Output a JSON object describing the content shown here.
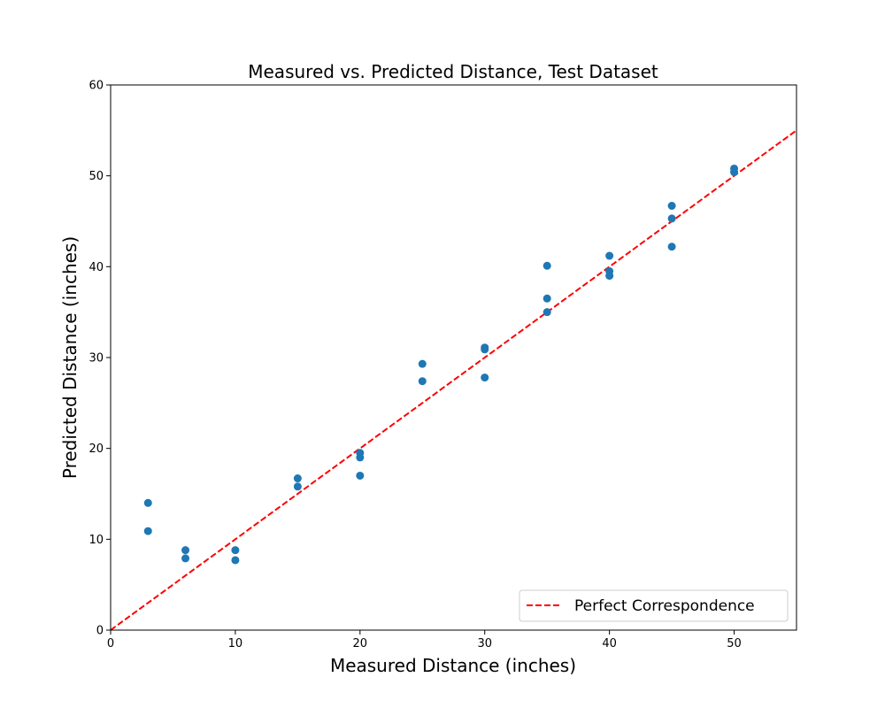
{
  "chart_data": {
    "type": "scatter",
    "title": "Measured vs. Predicted Distance, Test Dataset",
    "xlabel": "Measured Distance (inches)",
    "ylabel": "Predicted Distance (inches)",
    "xlim": [
      0,
      55
    ],
    "ylim": [
      0,
      60
    ],
    "xticks": [
      0,
      10,
      20,
      30,
      40,
      50
    ],
    "yticks": [
      0,
      10,
      20,
      30,
      40,
      50,
      60
    ],
    "grid": false,
    "legend_position": "bottom-right",
    "series": [
      {
        "type": "scatter",
        "color": "#1f77b4",
        "points": [
          [
            3,
            14.0
          ],
          [
            3,
            10.9
          ],
          [
            6,
            8.8
          ],
          [
            6,
            7.9
          ],
          [
            10,
            8.8
          ],
          [
            10,
            7.7
          ],
          [
            15,
            16.7
          ],
          [
            15,
            15.8
          ],
          [
            20,
            19.5
          ],
          [
            20,
            19.0
          ],
          [
            20,
            17.0
          ],
          [
            25,
            29.3
          ],
          [
            25,
            27.4
          ],
          [
            30,
            31.1
          ],
          [
            30,
            30.9
          ],
          [
            30,
            27.8
          ],
          [
            35,
            40.1
          ],
          [
            35,
            36.5
          ],
          [
            35,
            35.0
          ],
          [
            40,
            41.2
          ],
          [
            40,
            39.5
          ],
          [
            40,
            39.0
          ],
          [
            45,
            46.7
          ],
          [
            45,
            45.3
          ],
          [
            45,
            42.2
          ],
          [
            50,
            50.8
          ],
          [
            50,
            50.4
          ]
        ]
      },
      {
        "type": "line",
        "name": "Perfect Correspondence",
        "color": "#ff0000",
        "dash": "dashed",
        "points": [
          [
            0,
            0
          ],
          [
            55,
            55
          ]
        ]
      }
    ]
  }
}
